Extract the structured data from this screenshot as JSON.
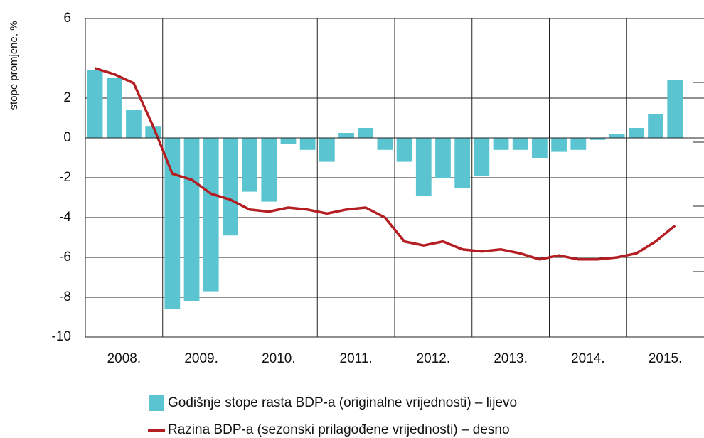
{
  "chart_data": {
    "type": "bar_line",
    "y_label": "stope promjene, %",
    "groups": [
      "2008.",
      "2009.",
      "2010.",
      "2011.",
      "2012.",
      "2013.",
      "2014.",
      "2015."
    ],
    "categories": [
      null,
      null,
      null,
      null,
      null,
      null,
      null,
      null,
      null,
      null,
      null,
      null,
      null,
      null,
      null,
      null,
      null,
      null,
      null,
      null,
      null,
      null,
      null,
      null,
      null,
      null,
      null,
      null,
      null,
      null,
      null,
      null
    ],
    "ylim": [
      -10,
      6
    ],
    "yticks": [
      6,
      2,
      0,
      -2,
      -4,
      -6,
      -8,
      -10
    ],
    "grid": true,
    "series": [
      {
        "name": "Godišnje stope rasta BDP-a (originalne vrijednosti) – lijevo",
        "type": "bar",
        "color": "#5bc4d1",
        "values": [
          3.4,
          3.0,
          1.4,
          0.6,
          -8.6,
          -8.2,
          -7.7,
          -4.9,
          -2.7,
          -3.2,
          -0.3,
          -0.6,
          -1.2,
          0.25,
          0.5,
          -0.6,
          -1.2,
          -2.9,
          -2.0,
          -2.5,
          -1.9,
          -0.6,
          -0.6,
          -1.0,
          -0.7,
          -0.6,
          -0.1,
          0.2,
          0.5,
          1.2,
          2.9,
          null
        ]
      },
      {
        "name": "Razina BDP-a (sezonski prilagođene vrijednosti) – desno",
        "type": "line",
        "color": "#b41e23",
        "values": [
          3.5,
          3.2,
          2.75,
          0.6,
          -1.8,
          -2.1,
          -2.8,
          -3.1,
          -3.6,
          -3.7,
          -3.5,
          -3.6,
          -3.8,
          -3.6,
          -3.5,
          -4.0,
          -5.2,
          -5.4,
          -5.2,
          -5.6,
          -5.7,
          -5.6,
          -5.8,
          -6.1,
          -5.9,
          -6.1,
          -6.1,
          -6.0,
          -5.8,
          -5.2,
          -4.4,
          null
        ]
      }
    ]
  }
}
